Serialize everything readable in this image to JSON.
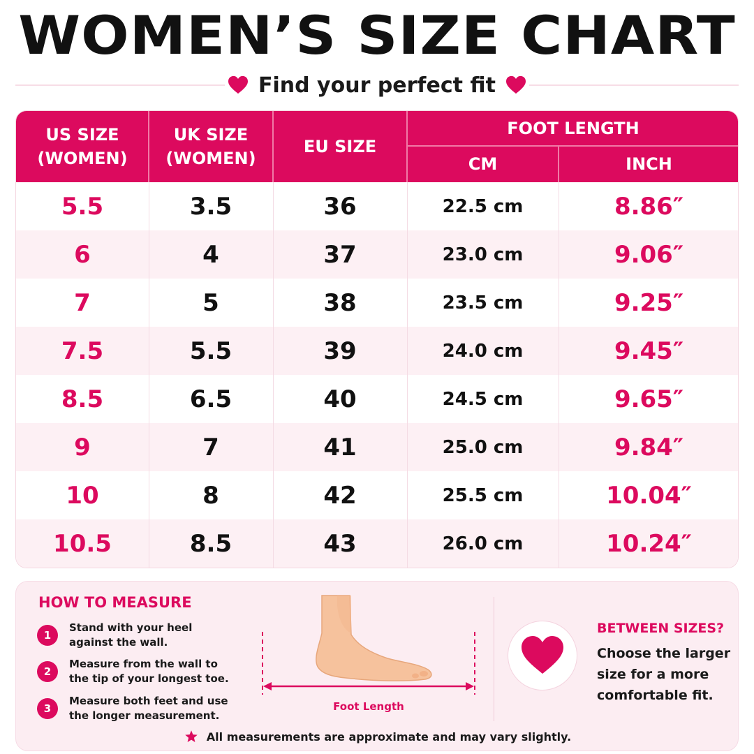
{
  "header": {
    "title": "WOMEN’S SIZE CHART",
    "subtitle": "Find your perfect fit"
  },
  "table": {
    "headers": {
      "us": "US SIZE\n(WOMEN)",
      "uk": "UK SIZE\n(WOMEN)",
      "eu": "EU SIZE",
      "foot_length": "FOOT LENGTH",
      "cm": "CM",
      "inch": "INCH"
    },
    "rows": [
      {
        "us": "5.5",
        "uk": "3.5",
        "eu": "36",
        "cm": "22.5 cm",
        "inch": "8.86″"
      },
      {
        "us": "6",
        "uk": "4",
        "eu": "37",
        "cm": "23.0 cm",
        "inch": "9.06″"
      },
      {
        "us": "7",
        "uk": "5",
        "eu": "38",
        "cm": "23.5 cm",
        "inch": "9.25″"
      },
      {
        "us": "7.5",
        "uk": "5.5",
        "eu": "39",
        "cm": "24.0 cm",
        "inch": "9.45″"
      },
      {
        "us": "8.5",
        "uk": "6.5",
        "eu": "40",
        "cm": "24.5 cm",
        "inch": "9.65″"
      },
      {
        "us": "9",
        "uk": "7",
        "eu": "41",
        "cm": "25.0 cm",
        "inch": "9.84″"
      },
      {
        "us": "10",
        "uk": "8",
        "eu": "42",
        "cm": "25.5 cm",
        "inch": "10.04″"
      },
      {
        "us": "10.5",
        "uk": "8.5",
        "eu": "43",
        "cm": "26.0 cm",
        "inch": "10.24″"
      }
    ]
  },
  "how_to_measure": {
    "title": "HOW TO MEASURE",
    "steps": [
      {
        "num": "1",
        "text": "Stand with your heel against the wall."
      },
      {
        "num": "2",
        "text": "Measure from the wall to the tip of your longest toe."
      },
      {
        "num": "3",
        "text": "Measure both feet and use the longer measurement."
      }
    ],
    "foot_label": "Foot Length"
  },
  "between_sizes": {
    "title": "BETWEEN SIZES?",
    "text": "Choose the larger size for a more comfortable fit."
  },
  "note": "All measurements are approximate and may vary slightly.",
  "colors": {
    "accent": "#dc0a5e",
    "alt_row": "#fdf0f4",
    "panel": "#fcedf2",
    "skin": "#f6c29d"
  },
  "icons": {
    "heart": "heart-icon",
    "star": "star-icon",
    "foot": "foot-illustration"
  }
}
